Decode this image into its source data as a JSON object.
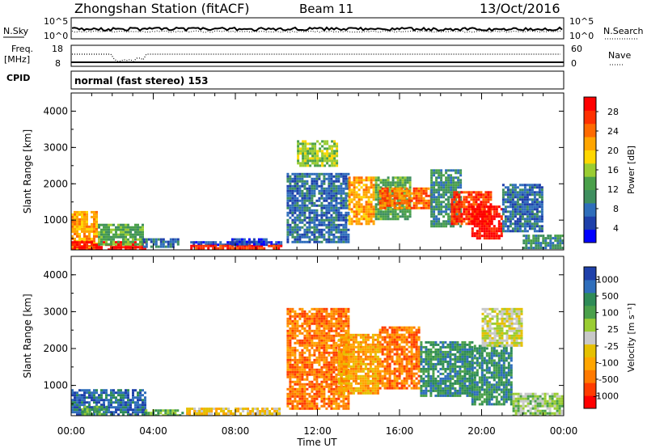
{
  "header": {
    "station": "Zhongshan Station (fitACF)",
    "beam": "Beam 11",
    "date": "13/Oct/2016"
  },
  "noise_panel": {
    "left_label": "N.Sky",
    "left_ticks": [
      "10^5",
      "10^0"
    ],
    "right_ticks": [
      "10^5",
      "10^0"
    ],
    "right_label": "N.Search"
  },
  "freq_panel": {
    "left_label_line1": "Freq.",
    "left_label_line2": "[MHz]",
    "left_ticks": [
      "18",
      "8"
    ],
    "right_ticks": [
      "60",
      "0"
    ],
    "right_label": "Nave"
  },
  "cpid": {
    "label": "CPID",
    "value": "normal (fast stereo) 153"
  },
  "time_axis": {
    "label": "Time UT",
    "ticks": [
      "00:00",
      "04:00",
      "08:00",
      "12:00",
      "16:00",
      "20:00",
      "00:00"
    ]
  },
  "chart_data": [
    {
      "type": "heatmap",
      "name": "power",
      "ylabel": "Slant Range [km]",
      "y_ticks": [
        "1000",
        "2000",
        "3000",
        "4000"
      ],
      "ylim": [
        180,
        4500
      ],
      "xlim_hours": [
        0,
        24
      ],
      "colorbar": {
        "label": "Power [dB]",
        "ticks": [
          "28",
          "24",
          "20",
          "16",
          "12",
          "8",
          "4"
        ],
        "colors": [
          "#0000ff",
          "#1e40aa",
          "#2f6ebb",
          "#3f8f5f",
          "#4aa04a",
          "#9acd32",
          "#ffd700",
          "#ffa500",
          "#ff6a00",
          "#ff3000",
          "#ff0000"
        ]
      },
      "regions": [
        {
          "t": [
            0,
            1.3
          ],
          "r": [
            200,
            1250
          ],
          "level": 7
        },
        {
          "t": [
            0,
            3.6
          ],
          "r": [
            180,
            420
          ],
          "level": 10
        },
        {
          "t": [
            1.3,
            3.5
          ],
          "r": [
            300,
            900
          ],
          "level": 4
        },
        {
          "t": [
            3.5,
            5.2
          ],
          "r": [
            250,
            500
          ],
          "level": 2
        },
        {
          "t": [
            5.8,
            10.2
          ],
          "r": [
            300,
            420
          ],
          "level": 1
        },
        {
          "t": [
            5.8,
            10.2
          ],
          "r": [
            200,
            320
          ],
          "level": 9
        },
        {
          "t": [
            7.8,
            9.5
          ],
          "r": [
            300,
            500
          ],
          "level": 1
        },
        {
          "t": [
            10.5,
            13.5
          ],
          "r": [
            400,
            2300
          ],
          "level": 2
        },
        {
          "t": [
            11.0,
            13.0
          ],
          "r": [
            2500,
            3200
          ],
          "level": 5
        },
        {
          "t": [
            13.5,
            14.8
          ],
          "r": [
            900,
            2200
          ],
          "level": 7
        },
        {
          "t": [
            14.8,
            16.5
          ],
          "r": [
            1000,
            2200
          ],
          "level": 4
        },
        {
          "t": [
            15.0,
            17.5
          ],
          "r": [
            1300,
            1900
          ],
          "level": 8
        },
        {
          "t": [
            17.5,
            19.0
          ],
          "r": [
            800,
            2400
          ],
          "level": 3
        },
        {
          "t": [
            18.5,
            20.5
          ],
          "r": [
            900,
            1800
          ],
          "level": 9
        },
        {
          "t": [
            19.5,
            21.0
          ],
          "r": [
            500,
            1400
          ],
          "level": 10
        },
        {
          "t": [
            21.0,
            23.0
          ],
          "r": [
            700,
            2000
          ],
          "level": 2
        },
        {
          "t": [
            22.0,
            24.0
          ],
          "r": [
            200,
            600
          ],
          "level": 3
        }
      ]
    },
    {
      "type": "heatmap",
      "name": "velocity",
      "ylabel": "Slant Range [km]",
      "y_ticks": [
        "1000",
        "2000",
        "3000",
        "4000"
      ],
      "ylim": [
        180,
        4500
      ],
      "xlim_hours": [
        0,
        24
      ],
      "colorbar": {
        "label": "Velocity [m s⁻¹]",
        "ticks": [
          "1000",
          "500",
          "100",
          "25",
          "-25",
          "-100",
          "-500",
          "-1000"
        ],
        "colors": [
          "#ff0000",
          "#ff3c00",
          "#ff7a00",
          "#ffa500",
          "#e5c000",
          "#c8c8c8",
          "#9acd32",
          "#4aa04a",
          "#2e8b57",
          "#2f6ebb",
          "#1e40aa"
        ]
      },
      "regions": [
        {
          "t": [
            0,
            3.6
          ],
          "r": [
            180,
            900
          ],
          "level": 9
        },
        {
          "t": [
            0.5,
            1.8
          ],
          "r": [
            200,
            450
          ],
          "level": 7
        },
        {
          "t": [
            3.6,
            5.4
          ],
          "r": [
            200,
            350
          ],
          "level": 7
        },
        {
          "t": [
            5.6,
            10.2
          ],
          "r": [
            180,
            400
          ],
          "level": 4
        },
        {
          "t": [
            10.5,
            13.5
          ],
          "r": [
            400,
            3100
          ],
          "level": 2
        },
        {
          "t": [
            13.0,
            15.0
          ],
          "r": [
            800,
            2400
          ],
          "level": 3
        },
        {
          "t": [
            15.0,
            17.0
          ],
          "r": [
            900,
            2600
          ],
          "level": 2
        },
        {
          "t": [
            17.0,
            19.5
          ],
          "r": [
            700,
            2200
          ],
          "level": 8
        },
        {
          "t": [
            19.5,
            21.5
          ],
          "r": [
            500,
            2100
          ],
          "level": 8
        },
        {
          "t": [
            20.0,
            22.0
          ],
          "r": [
            2100,
            3100
          ],
          "level": 5
        },
        {
          "t": [
            21.5,
            24.0
          ],
          "r": [
            200,
            800
          ],
          "level": 6
        }
      ]
    }
  ]
}
